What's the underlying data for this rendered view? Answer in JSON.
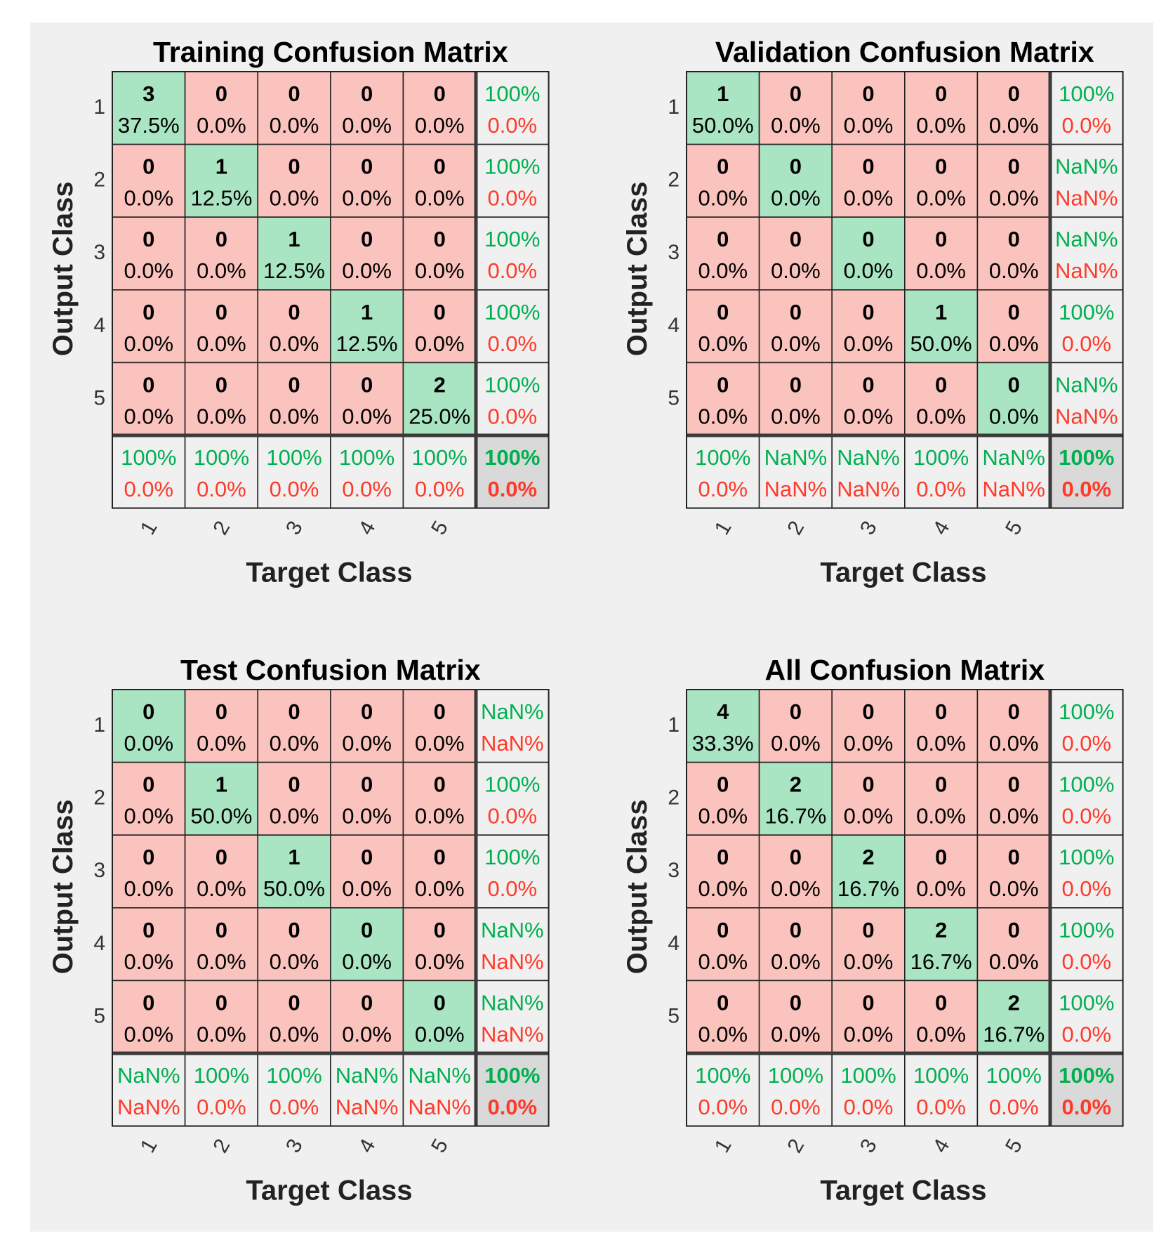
{
  "colors": {
    "figure_bg": "#f0f0f0",
    "correct_cell": "#a9e4c3",
    "wrong_cell": "#fbc3bd",
    "summary_cell": "#f0f0f0",
    "total_cell": "#d9d9d9",
    "ok_text": "#00b050",
    "err_text": "#ff3a2a",
    "grid_line": "#222222",
    "thick_line": "#3a3a3a"
  },
  "chart_data": [
    {
      "type": "heatmap",
      "title": "Training Confusion Matrix",
      "xlabel": "Target Class",
      "ylabel": "Output Class",
      "classes": [
        "1",
        "2",
        "3",
        "4",
        "5"
      ],
      "counts": [
        [
          3,
          0,
          0,
          0,
          0
        ],
        [
          0,
          1,
          0,
          0,
          0
        ],
        [
          0,
          0,
          1,
          0,
          0
        ],
        [
          0,
          0,
          0,
          1,
          0
        ],
        [
          0,
          0,
          0,
          0,
          2
        ]
      ],
      "percentages": [
        [
          "37.5%",
          "0.0%",
          "0.0%",
          "0.0%",
          "0.0%"
        ],
        [
          "0.0%",
          "12.5%",
          "0.0%",
          "0.0%",
          "0.0%"
        ],
        [
          "0.0%",
          "0.0%",
          "12.5%",
          "0.0%",
          "0.0%"
        ],
        [
          "0.0%",
          "0.0%",
          "0.0%",
          "12.5%",
          "0.0%"
        ],
        [
          "0.0%",
          "0.0%",
          "0.0%",
          "0.0%",
          "25.0%"
        ]
      ],
      "row_summary": [
        [
          "100%",
          "0.0%"
        ],
        [
          "100%",
          "0.0%"
        ],
        [
          "100%",
          "0.0%"
        ],
        [
          "100%",
          "0.0%"
        ],
        [
          "100%",
          "0.0%"
        ]
      ],
      "col_summary": [
        [
          "100%",
          "0.0%"
        ],
        [
          "100%",
          "0.0%"
        ],
        [
          "100%",
          "0.0%"
        ],
        [
          "100%",
          "0.0%"
        ],
        [
          "100%",
          "0.0%"
        ]
      ],
      "total": [
        "100%",
        "0.0%"
      ]
    },
    {
      "type": "heatmap",
      "title": "Validation Confusion Matrix",
      "xlabel": "Target Class",
      "ylabel": "Output Class",
      "classes": [
        "1",
        "2",
        "3",
        "4",
        "5"
      ],
      "counts": [
        [
          1,
          0,
          0,
          0,
          0
        ],
        [
          0,
          0,
          0,
          0,
          0
        ],
        [
          0,
          0,
          0,
          0,
          0
        ],
        [
          0,
          0,
          0,
          1,
          0
        ],
        [
          0,
          0,
          0,
          0,
          0
        ]
      ],
      "percentages": [
        [
          "50.0%",
          "0.0%",
          "0.0%",
          "0.0%",
          "0.0%"
        ],
        [
          "0.0%",
          "0.0%",
          "0.0%",
          "0.0%",
          "0.0%"
        ],
        [
          "0.0%",
          "0.0%",
          "0.0%",
          "0.0%",
          "0.0%"
        ],
        [
          "0.0%",
          "0.0%",
          "0.0%",
          "50.0%",
          "0.0%"
        ],
        [
          "0.0%",
          "0.0%",
          "0.0%",
          "0.0%",
          "0.0%"
        ]
      ],
      "row_summary": [
        [
          "100%",
          "0.0%"
        ],
        [
          "NaN%",
          "NaN%"
        ],
        [
          "NaN%",
          "NaN%"
        ],
        [
          "100%",
          "0.0%"
        ],
        [
          "NaN%",
          "NaN%"
        ]
      ],
      "col_summary": [
        [
          "100%",
          "0.0%"
        ],
        [
          "NaN%",
          "NaN%"
        ],
        [
          "NaN%",
          "NaN%"
        ],
        [
          "100%",
          "0.0%"
        ],
        [
          "NaN%",
          "NaN%"
        ]
      ],
      "total": [
        "100%",
        "0.0%"
      ]
    },
    {
      "type": "heatmap",
      "title": "Test Confusion Matrix",
      "xlabel": "Target Class",
      "ylabel": "Output Class",
      "classes": [
        "1",
        "2",
        "3",
        "4",
        "5"
      ],
      "counts": [
        [
          0,
          0,
          0,
          0,
          0
        ],
        [
          0,
          1,
          0,
          0,
          0
        ],
        [
          0,
          0,
          1,
          0,
          0
        ],
        [
          0,
          0,
          0,
          0,
          0
        ],
        [
          0,
          0,
          0,
          0,
          0
        ]
      ],
      "percentages": [
        [
          "0.0%",
          "0.0%",
          "0.0%",
          "0.0%",
          "0.0%"
        ],
        [
          "0.0%",
          "50.0%",
          "0.0%",
          "0.0%",
          "0.0%"
        ],
        [
          "0.0%",
          "0.0%",
          "50.0%",
          "0.0%",
          "0.0%"
        ],
        [
          "0.0%",
          "0.0%",
          "0.0%",
          "0.0%",
          "0.0%"
        ],
        [
          "0.0%",
          "0.0%",
          "0.0%",
          "0.0%",
          "0.0%"
        ]
      ],
      "row_summary": [
        [
          "NaN%",
          "NaN%"
        ],
        [
          "100%",
          "0.0%"
        ],
        [
          "100%",
          "0.0%"
        ],
        [
          "NaN%",
          "NaN%"
        ],
        [
          "NaN%",
          "NaN%"
        ]
      ],
      "col_summary": [
        [
          "NaN%",
          "NaN%"
        ],
        [
          "100%",
          "0.0%"
        ],
        [
          "100%",
          "0.0%"
        ],
        [
          "NaN%",
          "NaN%"
        ],
        [
          "NaN%",
          "NaN%"
        ]
      ],
      "total": [
        "100%",
        "0.0%"
      ]
    },
    {
      "type": "heatmap",
      "title": "All Confusion Matrix",
      "xlabel": "Target Class",
      "ylabel": "Output Class",
      "classes": [
        "1",
        "2",
        "3",
        "4",
        "5"
      ],
      "counts": [
        [
          4,
          0,
          0,
          0,
          0
        ],
        [
          0,
          2,
          0,
          0,
          0
        ],
        [
          0,
          0,
          2,
          0,
          0
        ],
        [
          0,
          0,
          0,
          2,
          0
        ],
        [
          0,
          0,
          0,
          0,
          2
        ]
      ],
      "percentages": [
        [
          "33.3%",
          "0.0%",
          "0.0%",
          "0.0%",
          "0.0%"
        ],
        [
          "0.0%",
          "16.7%",
          "0.0%",
          "0.0%",
          "0.0%"
        ],
        [
          "0.0%",
          "0.0%",
          "16.7%",
          "0.0%",
          "0.0%"
        ],
        [
          "0.0%",
          "0.0%",
          "0.0%",
          "16.7%",
          "0.0%"
        ],
        [
          "0.0%",
          "0.0%",
          "0.0%",
          "0.0%",
          "16.7%"
        ]
      ],
      "row_summary": [
        [
          "100%",
          "0.0%"
        ],
        [
          "100%",
          "0.0%"
        ],
        [
          "100%",
          "0.0%"
        ],
        [
          "100%",
          "0.0%"
        ],
        [
          "100%",
          "0.0%"
        ]
      ],
      "col_summary": [
        [
          "100%",
          "0.0%"
        ],
        [
          "100%",
          "0.0%"
        ],
        [
          "100%",
          "0.0%"
        ],
        [
          "100%",
          "0.0%"
        ],
        [
          "100%",
          "0.0%"
        ]
      ],
      "total": [
        "100%",
        "0.0%"
      ]
    }
  ]
}
